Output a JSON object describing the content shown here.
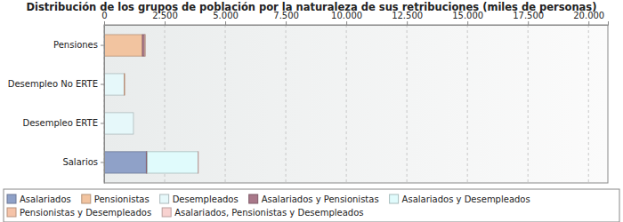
{
  "chart_data": {
    "type": "bar",
    "title": "Distribución de los grupos de población por la naturaleza de sus retribuciones (miles de personas)",
    "orientation": "horizontal",
    "stacked": true,
    "grid": true,
    "legend": "bottom",
    "categories": [
      "Pensiones",
      "Desempleo No ERTE",
      "Desempleo ERTE",
      "Salarios"
    ],
    "series": [
      {
        "name": "Asalariados",
        "color": "#8fa1c8",
        "values": [
          0,
          0,
          0,
          1740
        ]
      },
      {
        "name": "Pensionistas",
        "color": "#f2c4a0",
        "values": [
          1580,
          0,
          0,
          0
        ]
      },
      {
        "name": "Desempleados",
        "color": "#e6f8fa",
        "values": [
          0,
          830,
          1210,
          0
        ]
      },
      {
        "name": "Asalariados y Pensionistas",
        "color": "#a9788a",
        "values": [
          90,
          0,
          0,
          40
        ]
      },
      {
        "name": "Asalariados y Desempleados",
        "color": "#e0fbfc",
        "values": [
          0,
          0,
          0,
          2100
        ]
      },
      {
        "name": "Pensionistas y Desempleados",
        "color": "#f5c3a8",
        "values": [
          20,
          20,
          0,
          0
        ]
      },
      {
        "name": "Asalariados, Pensionistas y Desempleados",
        "color": "#f8d2d0",
        "values": [
          10,
          0,
          0,
          10
        ]
      }
    ],
    "xlim": [
      0,
      20800
    ],
    "xticks": [
      0,
      {
        "value": 2500,
        "label": "2.500"
      },
      {
        "value": 5000,
        "label": "5.000"
      },
      {
        "value": 7500,
        "label": "7.500"
      },
      {
        "value": 10000,
        "label": "10.000"
      },
      {
        "value": 12500,
        "label": "12.500"
      },
      {
        "value": 15000,
        "label": "15.000"
      },
      {
        "value": 17500,
        "label": "17.500"
      },
      {
        "value": 20000,
        "label": "20.000"
      }
    ]
  }
}
